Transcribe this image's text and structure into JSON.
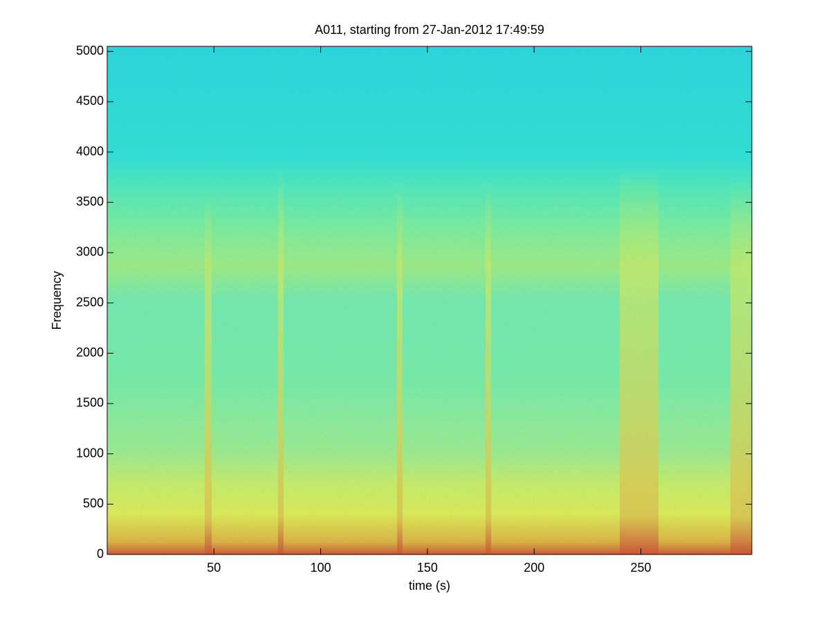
{
  "chart_data": {
    "type": "spectrogram",
    "title": "A011, starting from 27-Jan-2012 17:49:59",
    "xlabel": "time (s)",
    "ylabel": "Frequency",
    "xlim": [
      0,
      302
    ],
    "xticks": [
      50,
      100,
      150,
      200,
      250
    ],
    "ylim": [
      0,
      5050
    ],
    "yticks": [
      0,
      500,
      1000,
      1500,
      2000,
      2500,
      3000,
      3500,
      4000,
      4500,
      5000
    ],
    "colormap": "jet"
  }
}
